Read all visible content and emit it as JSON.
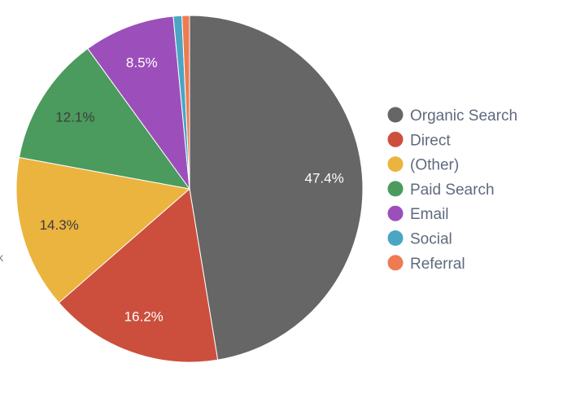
{
  "chart_data": {
    "type": "pie",
    "title": "",
    "categories": [
      "Organic Search",
      "Direct",
      "(Other)",
      "Paid Search",
      "Email",
      "Social",
      "Referral"
    ],
    "values": [
      47.4,
      16.2,
      14.3,
      12.1,
      8.5,
      0.8,
      0.7
    ],
    "labels": [
      "47.4%",
      "16.2%",
      "14.3%",
      "12.1%",
      "8.5%",
      "",
      ""
    ],
    "colors": [
      "#666666",
      "#cc4f3d",
      "#ebb43f",
      "#4a9b5d",
      "#9c4fbb",
      "#4aa6c3",
      "#ee7b51"
    ],
    "label_colors": [
      "#ffffff",
      "#ffffff",
      "#3d3d3d",
      "#3d3d3d",
      "#ffffff",
      "#ffffff",
      "#ffffff"
    ],
    "legend_position": "right",
    "start_angle_deg": 0,
    "direction": "clockwise"
  },
  "edge_glyph": "k"
}
